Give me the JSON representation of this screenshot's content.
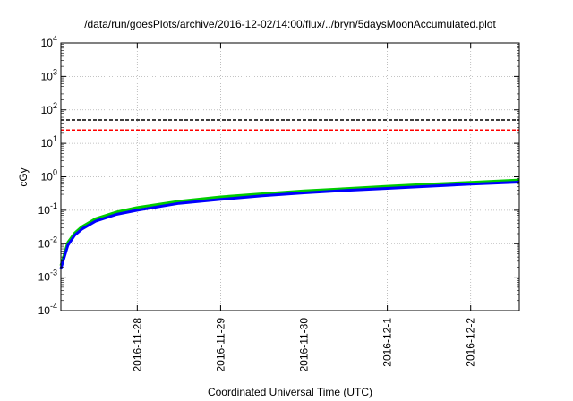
{
  "chart_data": {
    "type": "line",
    "title": "/data/run/goesPlots/archive/2016-12-02/14:00/flux/../bryn/5daysMoonAccumulated.plot",
    "xlabel": "Coordinated Universal Time (UTC)",
    "ylabel": "cGy",
    "x_type": "date",
    "xlim": [
      "2016-11-27T02:00",
      "2016-12-02T14:00"
    ],
    "ylim": [
      0.0001,
      10000
    ],
    "y_scale": "log",
    "grid": true,
    "x_ticks": [
      "2016-11-28",
      "2016-11-29",
      "2016-11-30",
      "2016-12-1",
      "2016-12-2"
    ],
    "x_tick_dates": [
      "2016-11-28T00:00",
      "2016-11-29T00:00",
      "2016-11-30T00:00",
      "2016-12-01T00:00",
      "2016-12-02T00:00"
    ],
    "y_ticks": [
      {
        "base": "10",
        "exp": "-4",
        "value": 0.0001
      },
      {
        "base": "10",
        "exp": "-3",
        "value": 0.001
      },
      {
        "base": "10",
        "exp": "-2",
        "value": 0.01
      },
      {
        "base": "10",
        "exp": "-1",
        "value": 0.1
      },
      {
        "base": "10",
        "exp": "0",
        "value": 1
      },
      {
        "base": "10",
        "exp": "1",
        "value": 10
      },
      {
        "base": "10",
        "exp": "2",
        "value": 100
      },
      {
        "base": "10",
        "exp": "3",
        "value": 1000
      },
      {
        "base": "10",
        "exp": "4",
        "value": 10000
      }
    ],
    "reference_lines": [
      {
        "y": 50,
        "color": "#000000",
        "style": "dashed"
      },
      {
        "y": 25,
        "color": "#ff0000",
        "style": "dashed"
      }
    ],
    "series": [
      {
        "color": "#00cc00",
        "x": [
          "2016-11-27T02:00",
          "2016-11-27T04:00",
          "2016-11-27T06:00",
          "2016-11-27T08:00",
          "2016-11-27T12:00",
          "2016-11-27T18:00",
          "2016-11-28T00:00",
          "2016-11-28T12:00",
          "2016-11-29T00:00",
          "2016-11-29T12:00",
          "2016-11-30T00:00",
          "2016-11-30T12:00",
          "2016-12-01T00:00",
          "2016-12-01T12:00",
          "2016-12-02T00:00",
          "2016-12-02T14:00"
        ],
        "y": [
          0.0022,
          0.011,
          0.021,
          0.032,
          0.056,
          0.088,
          0.12,
          0.185,
          0.25,
          0.31,
          0.38,
          0.44,
          0.52,
          0.6,
          0.68,
          0.8
        ]
      },
      {
        "color": "#0000ff",
        "x": [
          "2016-11-27T02:00",
          "2016-11-27T04:00",
          "2016-11-27T06:00",
          "2016-11-27T08:00",
          "2016-11-27T12:00",
          "2016-11-27T18:00",
          "2016-11-28T00:00",
          "2016-11-28T12:00",
          "2016-11-29T00:00",
          "2016-11-29T12:00",
          "2016-11-30T00:00",
          "2016-11-30T12:00",
          "2016-12-01T00:00",
          "2016-12-01T12:00",
          "2016-12-02T00:00",
          "2016-12-02T14:00"
        ],
        "y": [
          0.0018,
          0.009,
          0.018,
          0.027,
          0.047,
          0.075,
          0.1,
          0.16,
          0.21,
          0.27,
          0.33,
          0.39,
          0.45,
          0.52,
          0.6,
          0.69
        ]
      }
    ]
  }
}
